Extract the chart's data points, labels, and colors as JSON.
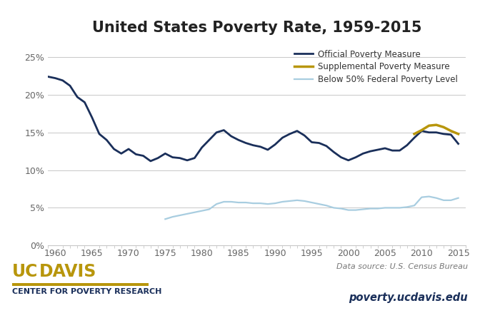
{
  "title": "United States Poverty Rate, 1959-2015",
  "title_fontsize": 15,
  "background_color": "#ffffff",
  "plot_bg_color": "#ffffff",
  "grid_color": "#c8c8c8",
  "xlim": [
    1959,
    2016
  ],
  "ylim": [
    0,
    0.27
  ],
  "yticks": [
    0.0,
    0.05,
    0.1,
    0.15,
    0.2,
    0.25
  ],
  "ytick_labels": [
    "0%",
    "5%",
    "10%",
    "15%",
    "20%",
    "25%"
  ],
  "xticks": [
    1960,
    1965,
    1970,
    1975,
    1980,
    1985,
    1990,
    1995,
    2000,
    2005,
    2010,
    2015
  ],
  "official_color": "#1a2f5a",
  "supplemental_color": "#b8960c",
  "below50_color": "#a8cde0",
  "official_lw": 2.0,
  "supplemental_lw": 2.5,
  "below50_lw": 1.6,
  "legend_labels": [
    "Official Poverty Measure",
    "Supplemental Poverty Measure",
    "Below 50% Federal Poverty Level"
  ],
  "source_text": "Data source: U.S. Census Bureau",
  "url_text": "poverty.ucdavis.edu",
  "center_text": "CENTER FOR POVERTY RESEARCH",
  "uc_color": "#b8960c",
  "davis_color": "#b8960c",
  "navy_color": "#1a2f5a",
  "official_x": [
    1959,
    1960,
    1961,
    1962,
    1963,
    1964,
    1965,
    1966,
    1967,
    1968,
    1969,
    1970,
    1971,
    1972,
    1973,
    1974,
    1975,
    1976,
    1977,
    1978,
    1979,
    1980,
    1981,
    1982,
    1983,
    1984,
    1985,
    1986,
    1987,
    1988,
    1989,
    1990,
    1991,
    1992,
    1993,
    1994,
    1995,
    1996,
    1997,
    1998,
    1999,
    2000,
    2001,
    2002,
    2003,
    2004,
    2005,
    2006,
    2007,
    2008,
    2009,
    2010,
    2011,
    2012,
    2013,
    2014,
    2015
  ],
  "official_y": [
    0.224,
    0.222,
    0.219,
    0.212,
    0.197,
    0.19,
    0.17,
    0.148,
    0.14,
    0.128,
    0.122,
    0.128,
    0.121,
    0.119,
    0.112,
    0.116,
    0.122,
    0.117,
    0.116,
    0.113,
    0.116,
    0.13,
    0.14,
    0.15,
    0.153,
    0.145,
    0.14,
    0.136,
    0.133,
    0.131,
    0.127,
    0.134,
    0.143,
    0.148,
    0.152,
    0.146,
    0.137,
    0.136,
    0.132,
    0.124,
    0.117,
    0.113,
    0.117,
    0.122,
    0.125,
    0.127,
    0.129,
    0.126,
    0.126,
    0.133,
    0.143,
    0.152,
    0.15,
    0.15,
    0.148,
    0.147,
    0.135
  ],
  "supplemental_x": [
    2009,
    2010,
    2011,
    2012,
    2013,
    2014,
    2015
  ],
  "supplemental_y": [
    0.148,
    0.153,
    0.159,
    0.16,
    0.157,
    0.152,
    0.148
  ],
  "below50_x": [
    1975,
    1976,
    1977,
    1978,
    1979,
    1980,
    1981,
    1982,
    1983,
    1984,
    1985,
    1986,
    1987,
    1988,
    1989,
    1990,
    1991,
    1992,
    1993,
    1994,
    1995,
    1996,
    1997,
    1998,
    1999,
    2000,
    2001,
    2002,
    2003,
    2004,
    2005,
    2006,
    2007,
    2008,
    2009,
    2010,
    2011,
    2012,
    2013,
    2014,
    2015
  ],
  "below50_y": [
    0.035,
    0.038,
    0.04,
    0.042,
    0.044,
    0.046,
    0.048,
    0.055,
    0.058,
    0.058,
    0.057,
    0.057,
    0.056,
    0.056,
    0.055,
    0.056,
    0.058,
    0.059,
    0.06,
    0.059,
    0.057,
    0.055,
    0.053,
    0.05,
    0.049,
    0.047,
    0.047,
    0.048,
    0.049,
    0.049,
    0.05,
    0.05,
    0.05,
    0.051,
    0.053,
    0.064,
    0.065,
    0.063,
    0.06,
    0.06,
    0.063
  ]
}
